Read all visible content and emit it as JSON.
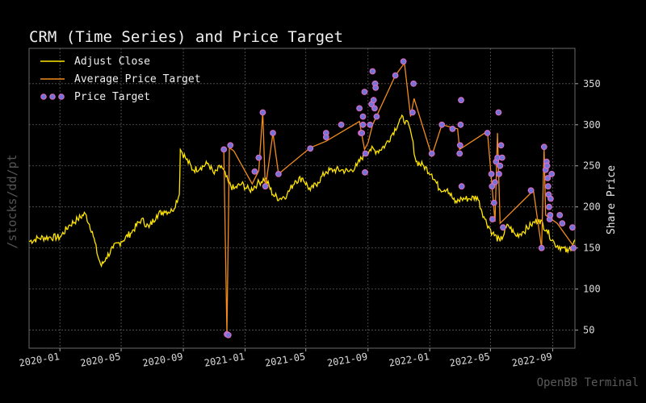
{
  "chart_data": {
    "type": "line",
    "title": "CRM (Time Series) and Price Target",
    "ylabel": "Share Price",
    "side_label": "/stocks/dd/pt",
    "watermark": "OpenBB Terminal",
    "x_range": [
      "2019-11-01",
      "2022-10-15"
    ],
    "ylim": [
      28,
      393
    ],
    "y_ticks": [
      50,
      100,
      150,
      200,
      250,
      300,
      350
    ],
    "x_ticks": [
      {
        "date": "2020-01-01",
        "label": "2020-01"
      },
      {
        "date": "2020-05-01",
        "label": "2020-05"
      },
      {
        "date": "2020-09-01",
        "label": "2020-09"
      },
      {
        "date": "2021-01-01",
        "label": "2021-01"
      },
      {
        "date": "2021-05-01",
        "label": "2021-05"
      },
      {
        "date": "2021-09-01",
        "label": "2021-09"
      },
      {
        "date": "2022-01-01",
        "label": "2022-01"
      },
      {
        "date": "2022-05-01",
        "label": "2022-05"
      },
      {
        "date": "2022-09-01",
        "label": "2022-09"
      }
    ],
    "grid": true,
    "legend_position": "top-left",
    "colors": {
      "adjust_close": "#ffe500",
      "average_target": "#f28c1b",
      "target_face": "#6f74d8",
      "target_edge": "#d96bc4",
      "grid": "#5a5a5a"
    },
    "series": [
      {
        "name": "Adjust Close",
        "points": [
          [
            "2019-11-01",
            158
          ],
          [
            "2019-11-20",
            162
          ],
          [
            "2019-12-10",
            163
          ],
          [
            "2020-01-01",
            163
          ],
          [
            "2020-01-20",
            178
          ],
          [
            "2020-02-05",
            185
          ],
          [
            "2020-02-20",
            192
          ],
          [
            "2020-03-05",
            170
          ],
          [
            "2020-03-16",
            140
          ],
          [
            "2020-03-23",
            128
          ],
          [
            "2020-04-01",
            138
          ],
          [
            "2020-04-15",
            150
          ],
          [
            "2020-05-01",
            158
          ],
          [
            "2020-05-20",
            168
          ],
          [
            "2020-06-10",
            185
          ],
          [
            "2020-06-25",
            175
          ],
          [
            "2020-07-10",
            190
          ],
          [
            "2020-07-25",
            195
          ],
          [
            "2020-08-10",
            195
          ],
          [
            "2020-08-24",
            215
          ],
          [
            "2020-08-26",
            270
          ],
          [
            "2020-09-05",
            260
          ],
          [
            "2020-09-20",
            245
          ],
          [
            "2020-10-05",
            248
          ],
          [
            "2020-10-20",
            253
          ],
          [
            "2020-11-01",
            240
          ],
          [
            "2020-11-15",
            250
          ],
          [
            "2020-11-30",
            228
          ],
          [
            "2020-12-10",
            222
          ],
          [
            "2020-12-25",
            228
          ],
          [
            "2021-01-10",
            220
          ],
          [
            "2021-01-25",
            228
          ],
          [
            "2021-02-10",
            235
          ],
          [
            "2021-02-25",
            215
          ],
          [
            "2021-03-10",
            210
          ],
          [
            "2021-03-25",
            215
          ],
          [
            "2021-04-10",
            232
          ],
          [
            "2021-04-25",
            235
          ],
          [
            "2021-05-10",
            220
          ],
          [
            "2021-05-25",
            230
          ],
          [
            "2021-06-10",
            243
          ],
          [
            "2021-06-25",
            245
          ],
          [
            "2021-07-10",
            245
          ],
          [
            "2021-07-25",
            243
          ],
          [
            "2021-08-10",
            250
          ],
          [
            "2021-08-25",
            265
          ],
          [
            "2021-09-05",
            270
          ],
          [
            "2021-09-20",
            268
          ],
          [
            "2021-10-05",
            275
          ],
          [
            "2021-10-20",
            290
          ],
          [
            "2021-11-05",
            308
          ],
          [
            "2021-11-15",
            305
          ],
          [
            "2021-11-25",
            290
          ],
          [
            "2021-12-05",
            255
          ],
          [
            "2021-12-20",
            250
          ],
          [
            "2022-01-05",
            240
          ],
          [
            "2022-01-20",
            222
          ],
          [
            "2022-02-05",
            222
          ],
          [
            "2022-02-20",
            205
          ],
          [
            "2022-03-05",
            210
          ],
          [
            "2022-03-20",
            210
          ],
          [
            "2022-04-05",
            212
          ],
          [
            "2022-04-20",
            185
          ],
          [
            "2022-05-05",
            168
          ],
          [
            "2022-05-20",
            158
          ],
          [
            "2022-06-05",
            178
          ],
          [
            "2022-06-20",
            165
          ],
          [
            "2022-07-05",
            170
          ],
          [
            "2022-07-20",
            178
          ],
          [
            "2022-08-05",
            185
          ],
          [
            "2022-08-20",
            172
          ],
          [
            "2022-09-05",
            155
          ],
          [
            "2022-09-20",
            150
          ],
          [
            "2022-10-01",
            145
          ],
          [
            "2022-10-15",
            160
          ]
        ]
      },
      {
        "name": "Average Price Target",
        "points": [
          [
            "2020-11-20",
            268
          ],
          [
            "2020-11-26",
            45
          ],
          [
            "2020-12-01",
            272
          ],
          [
            "2020-12-10",
            268
          ],
          [
            "2021-01-15",
            228
          ],
          [
            "2021-01-28",
            244
          ],
          [
            "2021-02-05",
            315
          ],
          [
            "2021-02-10",
            222
          ],
          [
            "2021-02-25",
            290
          ],
          [
            "2021-03-08",
            240
          ],
          [
            "2021-05-10",
            272
          ],
          [
            "2021-06-10",
            280
          ],
          [
            "2021-08-15",
            304
          ],
          [
            "2021-08-25",
            270
          ],
          [
            "2021-09-01",
            278
          ],
          [
            "2021-09-10",
            300
          ],
          [
            "2021-10-25",
            360
          ],
          [
            "2021-11-12",
            375
          ],
          [
            "2021-11-24",
            310
          ],
          [
            "2021-12-01",
            332
          ],
          [
            "2022-01-05",
            262
          ],
          [
            "2022-01-25",
            300
          ],
          [
            "2022-02-25",
            295
          ],
          [
            "2022-03-01",
            270
          ],
          [
            "2022-04-25",
            292
          ],
          [
            "2022-05-10",
            182
          ],
          [
            "2022-05-15",
            290
          ],
          [
            "2022-05-20",
            180
          ],
          [
            "2022-07-25",
            220
          ],
          [
            "2022-08-10",
            150
          ],
          [
            "2022-08-15",
            270
          ],
          [
            "2022-08-18",
            190
          ],
          [
            "2022-09-10",
            180
          ],
          [
            "2022-10-15",
            150
          ]
        ]
      },
      {
        "name": "Price Target",
        "points": [
          [
            "2020-11-20",
            270
          ],
          [
            "2020-11-26",
            45
          ],
          [
            "2020-11-29",
            44
          ],
          [
            "2020-12-03",
            275
          ],
          [
            "2021-01-20",
            243
          ],
          [
            "2021-01-28",
            260
          ],
          [
            "2021-02-05",
            315
          ],
          [
            "2021-02-10",
            225
          ],
          [
            "2021-02-25",
            290
          ],
          [
            "2021-03-08",
            240
          ],
          [
            "2021-05-10",
            271
          ],
          [
            "2021-06-10",
            290
          ],
          [
            "2021-06-10",
            285
          ],
          [
            "2021-07-10",
            300
          ],
          [
            "2021-08-15",
            320
          ],
          [
            "2021-08-18",
            290
          ],
          [
            "2021-08-20",
            290
          ],
          [
            "2021-08-22",
            310
          ],
          [
            "2021-08-22",
            300
          ],
          [
            "2021-08-25",
            340
          ],
          [
            "2021-08-26",
            242
          ],
          [
            "2021-08-27",
            265
          ],
          [
            "2021-09-05",
            300
          ],
          [
            "2021-09-08",
            325
          ],
          [
            "2021-09-10",
            365
          ],
          [
            "2021-09-12",
            330
          ],
          [
            "2021-09-14",
            320
          ],
          [
            "2021-09-15",
            350
          ],
          [
            "2021-09-16",
            345
          ],
          [
            "2021-09-18",
            310
          ],
          [
            "2021-10-25",
            360
          ],
          [
            "2021-11-10",
            377
          ],
          [
            "2021-11-28",
            315
          ],
          [
            "2021-11-30",
            350
          ],
          [
            "2022-01-05",
            265
          ],
          [
            "2022-01-25",
            300
          ],
          [
            "2022-02-15",
            295
          ],
          [
            "2022-03-01",
            265
          ],
          [
            "2022-03-02",
            275
          ],
          [
            "2022-03-03",
            300
          ],
          [
            "2022-03-04",
            330
          ],
          [
            "2022-03-05",
            225
          ],
          [
            "2022-04-25",
            290
          ],
          [
            "2022-05-03",
            240
          ],
          [
            "2022-05-04",
            225
          ],
          [
            "2022-05-05",
            185
          ],
          [
            "2022-05-08",
            205
          ],
          [
            "2022-05-10",
            230
          ],
          [
            "2022-05-12",
            255
          ],
          [
            "2022-05-15",
            260
          ],
          [
            "2022-05-17",
            315
          ],
          [
            "2022-05-18",
            240
          ],
          [
            "2022-05-20",
            250
          ],
          [
            "2022-05-22",
            275
          ],
          [
            "2022-05-24",
            260
          ],
          [
            "2022-05-26",
            175
          ],
          [
            "2022-07-20",
            220
          ],
          [
            "2022-08-10",
            150
          ],
          [
            "2022-08-15",
            273
          ],
          [
            "2022-08-18",
            245
          ],
          [
            "2022-08-20",
            255
          ],
          [
            "2022-08-21",
            250
          ],
          [
            "2022-08-22",
            235
          ],
          [
            "2022-08-23",
            225
          ],
          [
            "2022-08-24",
            215
          ],
          [
            "2022-08-25",
            200
          ],
          [
            "2022-08-26",
            185
          ],
          [
            "2022-08-27",
            190
          ],
          [
            "2022-08-28",
            210
          ],
          [
            "2022-08-30",
            240
          ],
          [
            "2022-09-15",
            190
          ],
          [
            "2022-09-20",
            180
          ],
          [
            "2022-10-10",
            175
          ],
          [
            "2022-10-12",
            150
          ]
        ]
      }
    ]
  }
}
